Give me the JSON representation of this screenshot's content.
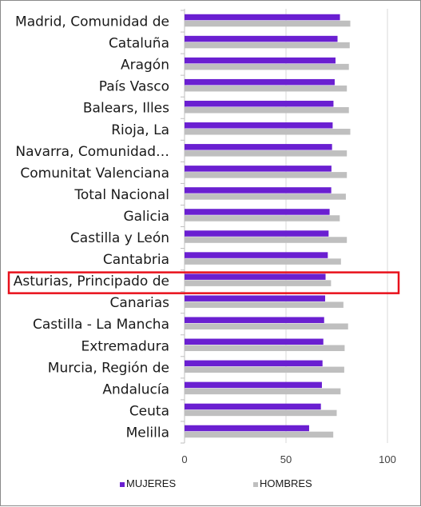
{
  "chart_data": {
    "type": "bar",
    "orientation": "horizontal",
    "categories": [
      "Madrid, Comunidad de",
      "Cataluña",
      "Aragón",
      "País Vasco",
      "Balears, Illes",
      "Rioja, La",
      "Navarra, Comunidad…",
      "Comunitat Valenciana",
      "Total Nacional",
      "Galicia",
      "Castilla y León",
      "Cantabria",
      "Asturias, Principado de",
      "Canarias",
      "Castilla - La Mancha",
      "Extremadura",
      "Murcia, Región de",
      "Andalucía",
      "Ceuta",
      "Melilla"
    ],
    "series": [
      {
        "name": "MUJERES",
        "color": "#6a1fd1",
        "values": [
          76.6,
          75.4,
          74.4,
          74.0,
          73.4,
          73.0,
          72.7,
          72.4,
          72.3,
          71.5,
          71.0,
          70.6,
          69.5,
          69.3,
          68.8,
          68.4,
          68.0,
          67.7,
          67.2,
          61.4
        ]
      },
      {
        "name": "HOMBRES",
        "color": "#bfbfbf",
        "values": [
          81.7,
          81.4,
          81.0,
          80.0,
          81.0,
          81.7,
          80.0,
          80.0,
          79.5,
          76.5,
          80.0,
          77.1,
          72.2,
          78.3,
          80.6,
          78.9,
          78.7,
          76.9,
          75.0,
          73.3
        ]
      }
    ],
    "highlighted_category": "Asturias, Principado de",
    "xlim": [
      0,
      100
    ],
    "x_ticks": [
      0,
      50,
      100
    ],
    "grid": "vertical",
    "legend": "bottom",
    "title": "",
    "xlabel": "",
    "ylabel": ""
  }
}
